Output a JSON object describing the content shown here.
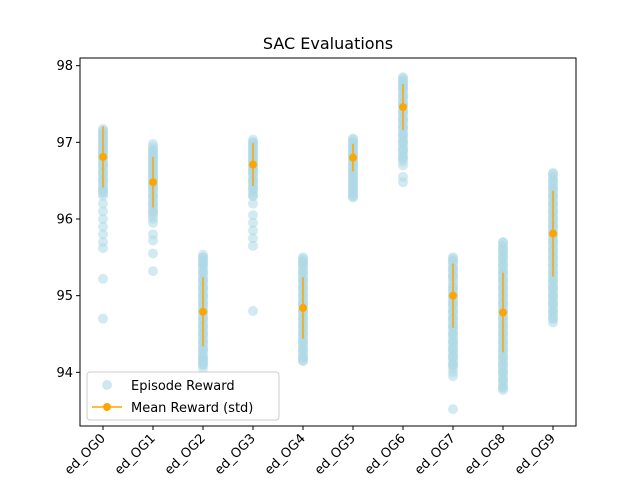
{
  "chart_data": {
    "type": "scatter",
    "title": "SAC Evaluations",
    "xlabel": "",
    "ylabel": "",
    "categories": [
      "ed_OG0",
      "ed_OG1",
      "ed_OG2",
      "ed_OG3",
      "ed_OG4",
      "ed_OG5",
      "ed_OG6",
      "ed_OG7",
      "ed_OG8",
      "ed_OG9"
    ],
    "ylim": [
      93.3,
      98.1
    ],
    "yticks": [
      "94",
      "95",
      "96",
      "97",
      "98"
    ],
    "grid": false,
    "legend_position": "lower-left",
    "series": [
      {
        "name": "Episode Reward",
        "kind": "points",
        "color": "#add8e6",
        "points": [
          [
            [
              96.3,
              97.2
            ],
            [
              96.8,
              96.95,
              97.0,
              97.05,
              97.1,
              97.15,
              96.9,
              96.85,
              96.7,
              96.6,
              96.5,
              96.4,
              96.35,
              96.2,
              96.1,
              96.0,
              95.9,
              95.8,
              95.7,
              95.62,
              95.22,
              94.7
            ]
          ],
          [
            [
              96.0,
              97.0
            ],
            [
              96.9,
              96.85,
              96.8,
              96.75,
              96.7,
              96.65,
              96.6,
              96.55,
              96.5,
              96.45,
              96.4,
              96.3,
              96.2,
              96.1,
              95.95,
              95.8,
              95.72,
              95.55,
              95.32
            ]
          ],
          [
            [
              94.1,
              95.55
            ],
            [
              95.5,
              95.45,
              95.4,
              95.3,
              95.2,
              95.1,
              95.0,
              94.9,
              94.8,
              94.7,
              94.6,
              94.5,
              94.4,
              94.3,
              94.2,
              94.15,
              94.1,
              94.05
            ]
          ],
          [
            [
              96.3,
              97.05
            ],
            [
              97.0,
              96.95,
              96.9,
              96.85,
              96.8,
              96.75,
              96.7,
              96.65,
              96.6,
              96.5,
              96.4,
              96.3,
              96.2,
              96.05,
              95.95,
              95.85,
              95.75,
              95.65,
              94.8
            ]
          ],
          [
            [
              94.15,
              95.5
            ],
            [
              95.5,
              95.45,
              95.4,
              95.3,
              95.2,
              95.1,
              95.0,
              94.9,
              94.8,
              94.7,
              94.6,
              94.5,
              94.4,
              94.3,
              94.2,
              94.15
            ]
          ],
          [
            [
              96.3,
              97.05
            ],
            [
              97.05,
              97.0,
              96.95,
              96.9,
              96.85,
              96.8,
              96.75,
              96.7,
              96.65,
              96.6,
              96.55,
              96.5,
              96.45,
              96.4,
              96.35,
              96.3,
              96.28
            ]
          ],
          [
            [
              96.75,
              97.85
            ],
            [
              97.85,
              97.8,
              97.75,
              97.7,
              97.6,
              97.5,
              97.4,
              97.3,
              97.2,
              97.1,
              97.0,
              96.9,
              96.8,
              96.7,
              96.55,
              96.48
            ]
          ],
          [
            [
              94.05,
              95.5
            ],
            [
              95.5,
              95.45,
              95.35,
              95.25,
              95.1,
              95.0,
              94.9,
              94.8,
              94.7,
              94.6,
              94.5,
              94.4,
              94.3,
              94.2,
              94.1,
              94.0,
              93.95,
              93.52
            ]
          ],
          [
            [
              93.8,
              95.7
            ],
            [
              95.7,
              95.6,
              95.5,
              95.4,
              95.3,
              95.2,
              95.1,
              95.0,
              94.9,
              94.8,
              94.7,
              94.6,
              94.5,
              94.4,
              94.3,
              94.2,
              94.1,
              94.0,
              93.9,
              93.8,
              93.77
            ]
          ],
          [
            [
              94.7,
              96.6
            ],
            [
              96.6,
              96.5,
              96.4,
              96.3,
              96.2,
              96.1,
              96.0,
              95.9,
              95.8,
              95.7,
              95.6,
              95.5,
              95.4,
              95.3,
              95.2,
              95.1,
              95.0,
              94.9,
              94.8,
              94.7,
              94.65
            ]
          ]
        ]
      },
      {
        "name": "Mean Reward (std)",
        "kind": "errorbar",
        "color": "#ffa500",
        "values": [
          96.81,
          96.48,
          94.79,
          96.71,
          94.84,
          96.8,
          97.46,
          95.0,
          94.78,
          95.81
        ],
        "std": [
          0.4,
          0.33,
          0.45,
          0.28,
          0.4,
          0.18,
          0.3,
          0.42,
          0.52,
          0.56
        ]
      }
    ]
  }
}
